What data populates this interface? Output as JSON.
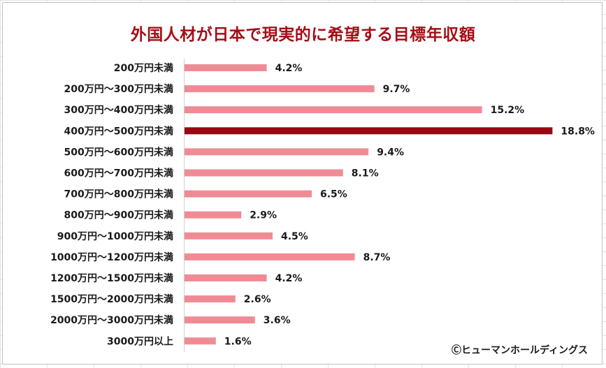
{
  "chart_data": {
    "type": "bar",
    "orientation": "horizontal",
    "title": "外国人材が日本で現実的に希望する目標年収額",
    "categories": [
      "200万円未満",
      "200万円～300万円未満",
      "300万円～400万円未満",
      "400万円～500万円未満",
      "500万円～600万円未満",
      "600万円～700万円未満",
      "700万円～800万円未満",
      "800万円～900万円未満",
      "900万円～1000万円未満",
      "1000万円～1200万円未満",
      "1200万円～1500万円未満",
      "1500万円～2000万円未満",
      "2000万円～3000万円未満",
      "3000万円以上"
    ],
    "values": [
      4.2,
      9.7,
      15.2,
      18.8,
      9.4,
      8.1,
      6.5,
      2.9,
      4.5,
      8.7,
      4.2,
      2.6,
      3.6,
      1.6
    ],
    "value_labels": [
      "4.2%",
      "9.7%",
      "15.2%",
      "18.8%",
      "9.4%",
      "8.1%",
      "6.5%",
      "2.9%",
      "4.5%",
      "8.7%",
      "4.2%",
      "2.6%",
      "3.6%",
      "1.6%"
    ],
    "highlight_index": 3,
    "colors": {
      "bar": "#f08b95",
      "highlight": "#960812",
      "title": "#a50d16"
    },
    "xlim": [
      0,
      20
    ],
    "grid": false,
    "legend": "none"
  },
  "copyright": "Ⓒヒューマンホールディングス"
}
